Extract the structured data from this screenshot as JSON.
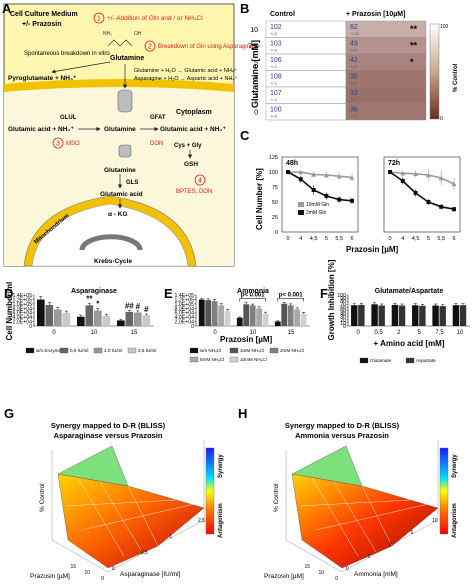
{
  "panel_labels": [
    "A",
    "B",
    "C",
    "D",
    "E",
    "F",
    "G",
    "H"
  ],
  "colors": {
    "membrane": "#f2c200",
    "extracellular": "#fff7b0",
    "cytoplasm": "#fdf7dc",
    "red": "#d62020",
    "bar_black": "#111111",
    "bar_dark": "#666666",
    "bar_mid": "#999999",
    "bar_light": "#c8c8c8",
    "heat_low": "#ffffff",
    "heat_high": "#6b2a20",
    "synergy": "#1a3cff",
    "antagonism": "#ff1a1a"
  },
  "panelA": {
    "title": "Cell Culture Medium",
    "subtitle": "+/- Prazosin",
    "cytoplasm_label": "Cytoplasm",
    "mitochondrium_label": "Mitochondrium",
    "krebs_label": "Krebs-Cycle",
    "step1_num": "1",
    "step1": "+/- Addition of Gln and / or NH₄Cl",
    "step2_num": "2",
    "step2": "Breakdown of Gln using Asparaginase",
    "step3_num": "3",
    "step4_num": "4",
    "nh2": "NH₂",
    "oh": "OH",
    "glutamine": "Glutamine",
    "spontaneous": "Spontaneous breakdown in vitro",
    "pyroglutamate": "Pyroglutamate + NH₄⁺",
    "eq1": "Glutamine + H₂O → Glutamic acid + NH₄⁺",
    "eq2": "Asparagine + H₂O → Aspartic acid + NH₄⁺",
    "glul": "GLUL",
    "gfat": "GFAT",
    "glutamic_nh4": "Glutamic acid + NH₄⁺",
    "glutamine_c": "Glutamine",
    "glutamic_nh4_right": "Glutamic acid + NH₄⁺",
    "mso": "MSO",
    "don": "DON",
    "cys_gly": "Cys + Gly",
    "gsh": "GSH",
    "glutamine_m": "Glutamine",
    "gls": "GLS",
    "glutamic_m": "Glutamic acid",
    "akg": "α - KG",
    "bptes": "BPTES, DON"
  },
  "panelB": {
    "col_headers": [
      "Control",
      "+ Prazosin [10µM]"
    ],
    "ylabel": "Glutamine [mM]",
    "legend_label": "% Control",
    "legend_max": "100",
    "legend_min": "0",
    "rows": [
      {
        "gln": "10",
        "control": "102",
        "control_sd": "+/-2",
        "praz": "62",
        "praz_sd": "+/-10",
        "sig": "**"
      },
      {
        "gln": "7,5",
        "control": "103",
        "control_sd": "+/-6",
        "praz": "49",
        "praz_sd": "+/-4",
        "sig": "**"
      },
      {
        "gln": "5",
        "control": "106",
        "control_sd": "+/-2",
        "praz": "42",
        "praz_sd": "+/-5",
        "sig": "*"
      },
      {
        "gln": "2",
        "control": "108",
        "control_sd": "+/-1",
        "praz": "35",
        "praz_sd": "+/-1",
        "sig": ""
      },
      {
        "gln": "1",
        "control": "107",
        "control_sd": "+/-4",
        "praz": "33",
        "praz_sd": "+/-1",
        "sig": ""
      },
      {
        "gln": "0",
        "control": "100",
        "control_sd": "+/-5",
        "praz": "36",
        "praz_sd": "+/-3",
        "sig": ""
      }
    ]
  },
  "chart_data": [
    {
      "id": "C",
      "type": "line",
      "ylabel": "Cell Number [%]",
      "xlabel": "Prazosin [µM]",
      "categories": [
        "0",
        "4",
        "4,5",
        "5",
        "5,5",
        "6"
      ],
      "ylim": [
        0,
        125
      ],
      "yticks": [
        "0",
        "25",
        "50",
        "75",
        "100",
        "125"
      ],
      "panels": [
        {
          "title": "48h",
          "series": [
            {
              "name": "10mM Gln",
              "values": [
                100,
                100,
                96,
                95,
                93,
                91
              ],
              "err": [
                3,
                4,
                5,
                5,
                6,
                6
              ]
            },
            {
              "name": "2mM Gln",
              "values": [
                100,
                88,
                70,
                60,
                54,
                52
              ],
              "err": [
                3,
                6,
                8,
                6,
                5,
                5
              ]
            }
          ]
        },
        {
          "title": "72h",
          "series": [
            {
              "name": "10mM Gln",
              "values": [
                100,
                98,
                97,
                95,
                90,
                80
              ],
              "err": [
                3,
                5,
                6,
                10,
                12,
                10
              ]
            },
            {
              "name": "2mM Gln",
              "values": [
                100,
                85,
                65,
                50,
                42,
                38
              ],
              "err": [
                3,
                6,
                6,
                5,
                4,
                4
              ]
            }
          ]
        }
      ]
    },
    {
      "id": "D",
      "type": "bar",
      "title": "Asparaginase",
      "ylabel": "Cell Number/ml",
      "ylim": [
        0,
        150000
      ],
      "yticks": [
        "0",
        "2,0E+04",
        "4,0E+04",
        "6,0E+04",
        "8,0E+04",
        "1,0E+05",
        "1,2E+05",
        "1,4E+05"
      ],
      "categories": [
        "0",
        "10",
        "15"
      ],
      "series": [
        {
          "name": "w/o Enzyme",
          "values": [
            128000,
            45000,
            27000
          ],
          "err": [
            15000,
            8000,
            6000
          ]
        },
        {
          "name": "0,5 IU/ml",
          "values": [
            102000,
            100000,
            68000
          ],
          "err": [
            12000,
            10000,
            7000
          ]
        },
        {
          "name": "1,0 IU/ml",
          "values": [
            80000,
            75000,
            65000
          ],
          "err": [
            10000,
            9000,
            8000
          ]
        },
        {
          "name": "2,5 IU/ml",
          "values": [
            64000,
            50000,
            52000
          ],
          "err": [
            8000,
            7000,
            6000
          ]
        }
      ],
      "annotations": [
        {
          "cat": 1,
          "series": 1,
          "text": "**"
        },
        {
          "cat": 1,
          "series": 2,
          "text": "*"
        },
        {
          "cat": 2,
          "series": 1,
          "text": "##"
        },
        {
          "cat": 2,
          "series": 2,
          "text": "#"
        },
        {
          "cat": 2,
          "series": 3,
          "text": "#"
        }
      ]
    },
    {
      "id": "E",
      "type": "bar",
      "title": "Ammonia",
      "ylim": [
        0,
        150000
      ],
      "yticks": [
        "0",
        "2,0E+04",
        "4,0E+04",
        "6,0E+04",
        "8,0E+04",
        "1,0E+05",
        "1,2E+05",
        "1,4E+05"
      ],
      "categories": [
        "0",
        "10",
        "15"
      ],
      "series": [
        {
          "name": "w/o NH₄Cl",
          "values": [
            128000,
            40000,
            22000
          ],
          "err": [
            5000,
            4000,
            3000
          ]
        },
        {
          "name": "1mM NH₄Cl",
          "values": [
            125000,
            105000,
            108000
          ],
          "err": [
            6000,
            8000,
            6000
          ]
        },
        {
          "name": "2mM NH₄Cl",
          "values": [
            120000,
            100000,
            100000
          ],
          "err": [
            8000,
            6000,
            7000
          ]
        },
        {
          "name": "5mM NH₄Cl",
          "values": [
            100000,
            85000,
            80000
          ],
          "err": [
            10000,
            8000,
            8000
          ]
        },
        {
          "name": "10mM NH₄Cl",
          "values": [
            72000,
            60000,
            60000
          ],
          "err": [
            8000,
            7000,
            6000
          ]
        }
      ],
      "brackets": [
        {
          "cat": 1,
          "text": "p< 0.001"
        },
        {
          "cat": 2,
          "text": "p< 0.001"
        }
      ]
    },
    {
      "id": "F",
      "type": "bar",
      "title": "Glutamate/Aspartate",
      "ylabel": "Growth Inhibition [%]",
      "xlabel": "+ Amino acid [mM]",
      "ylim": [
        0,
        100
      ],
      "yticks": [
        "0",
        "10",
        "20",
        "30",
        "40",
        "50",
        "60",
        "70",
        "80",
        "90",
        "100"
      ],
      "categories": [
        "0",
        "0,5",
        "2",
        "5",
        "7,5",
        "10"
      ],
      "series": [
        {
          "name": "Glutamate",
          "values": [
            67,
            70,
            68,
            67,
            66,
            67
          ],
          "err": [
            5,
            5,
            5,
            5,
            5,
            5
          ]
        },
        {
          "name": "Aspartate",
          "values": [
            68,
            66,
            66,
            65,
            64,
            67
          ],
          "err": [
            5,
            5,
            5,
            5,
            5,
            5
          ]
        }
      ]
    },
    {
      "id": "G",
      "type": "heatmap",
      "title": "Synergy mapped to D-R (BLISS)",
      "subtitle": "Asparaginase versus Prazosin",
      "zlabel": "% Control",
      "xlabel": "Prazosin [µM]",
      "ylabel": "Asparaginase [IU/ml]",
      "x": [
        "0",
        "10",
        "15"
      ],
      "y": [
        "0",
        "0,5",
        "1",
        "2,5"
      ],
      "colorbar": {
        "top": "Synergy",
        "bottom": "Antagonism"
      }
    },
    {
      "id": "H",
      "type": "heatmap",
      "title": "Synergy mapped to D-R (BLISS)",
      "subtitle": "Ammonia versus Prazosin",
      "zlabel": "% Control",
      "xlabel": "Prazosin [µM]",
      "ylabel": "Ammonia [mM]",
      "x": [
        "0",
        "10",
        "15"
      ],
      "y": [
        "0",
        "1",
        "2",
        "5",
        "10"
      ],
      "colorbar": {
        "top": "Synergy",
        "bottom": "Antagonism"
      }
    }
  ],
  "common": {
    "prazosin_label": "Prazosin [µM]"
  }
}
